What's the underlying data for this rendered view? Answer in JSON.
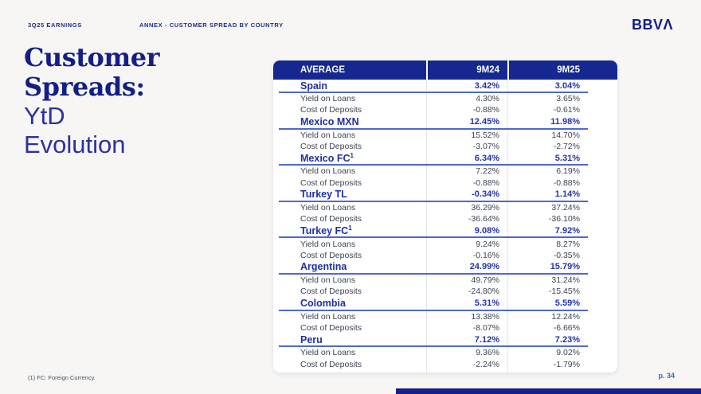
{
  "slide": {
    "eyebrow_left": "3Q25 EARNINGS",
    "eyebrow_center": "ANNEX - CUSTOMER SPREAD BY COUNTRY",
    "logo": "BBVΛ",
    "title_serif_line1": "Customer",
    "title_serif_line2": "Spreads:",
    "title_sans_line1": "YtD",
    "title_sans_line2": "Evolution",
    "footnote": "(1) FC: Foreign Currency.",
    "page_number": "p. 34"
  },
  "table": {
    "columns": [
      "AVERAGE",
      "9M24",
      "9M25"
    ],
    "sections": [
      {
        "country": "Spain",
        "sup": "",
        "values": [
          "3.42%",
          "3.04%"
        ],
        "rows": [
          {
            "label": "Yield on Loans",
            "values": [
              "4.30%",
              "3.65%"
            ]
          },
          {
            "label": "Cost of Deposits",
            "values": [
              "-0.88%",
              "-0.61%"
            ]
          }
        ]
      },
      {
        "country": "Mexico MXN",
        "sup": "",
        "values": [
          "12.45%",
          "11.98%"
        ],
        "rows": [
          {
            "label": "Yield on Loans",
            "values": [
              "15.52%",
              "14.70%"
            ]
          },
          {
            "label": "Cost of Deposits",
            "values": [
              "-3.07%",
              "-2.72%"
            ]
          }
        ]
      },
      {
        "country": "Mexico FC",
        "sup": "1",
        "values": [
          "6.34%",
          "5.31%"
        ],
        "rows": [
          {
            "label": "Yield on Loans",
            "values": [
              "7.22%",
              "6.19%"
            ]
          },
          {
            "label": "Cost of Deposits",
            "values": [
              "-0.88%",
              "-0.88%"
            ]
          }
        ]
      },
      {
        "country": "Turkey TL",
        "sup": "",
        "values": [
          "-0.34%",
          "1.14%"
        ],
        "rows": [
          {
            "label": "Yield on Loans",
            "values": [
              "36.29%",
              "37.24%"
            ]
          },
          {
            "label": "Cost of Deposits",
            "values": [
              "-36.64%",
              "-36.10%"
            ]
          }
        ]
      },
      {
        "country": "Turkey FC",
        "sup": "1",
        "values": [
          "9.08%",
          "7.92%"
        ],
        "rows": [
          {
            "label": "Yield on Loans",
            "values": [
              "9.24%",
              "8.27%"
            ]
          },
          {
            "label": "Cost of Deposits",
            "values": [
              "-0.16%",
              "-0.35%"
            ]
          }
        ]
      },
      {
        "country": "Argentina",
        "sup": "",
        "values": [
          "24.99%",
          "15.79%"
        ],
        "rows": [
          {
            "label": "Yield on Loans",
            "values": [
              "49.79%",
              "31.24%"
            ]
          },
          {
            "label": "Cost of Deposits",
            "values": [
              "-24.80%",
              "-15.45%"
            ]
          }
        ]
      },
      {
        "country": "Colombia",
        "sup": "",
        "values": [
          "5.31%",
          "5.59%"
        ],
        "rows": [
          {
            "label": "Yield on Loans",
            "values": [
              "13.38%",
              "12.24%"
            ]
          },
          {
            "label": "Cost of Deposits",
            "values": [
              "-8.07%",
              "-6.66%"
            ]
          }
        ]
      },
      {
        "country": "Peru",
        "sup": "",
        "values": [
          "7.12%",
          "7.23%"
        ],
        "rows": [
          {
            "label": "Yield on Loans",
            "values": [
              "9.36%",
              "9.02%"
            ]
          },
          {
            "label": "Cost of Deposits",
            "values": [
              "-2.24%",
              "-1.79%"
            ]
          }
        ]
      }
    ]
  },
  "colors": {
    "page_background": "#f7f6f5",
    "navy_brand": "#131f8a",
    "table_header_bar": "#16288f",
    "country_text_blue": "#1d2fa8",
    "underline_blue": "#4e68d0",
    "detail_text": "#3d4453",
    "page_number_blue": "#3e5ecf"
  }
}
